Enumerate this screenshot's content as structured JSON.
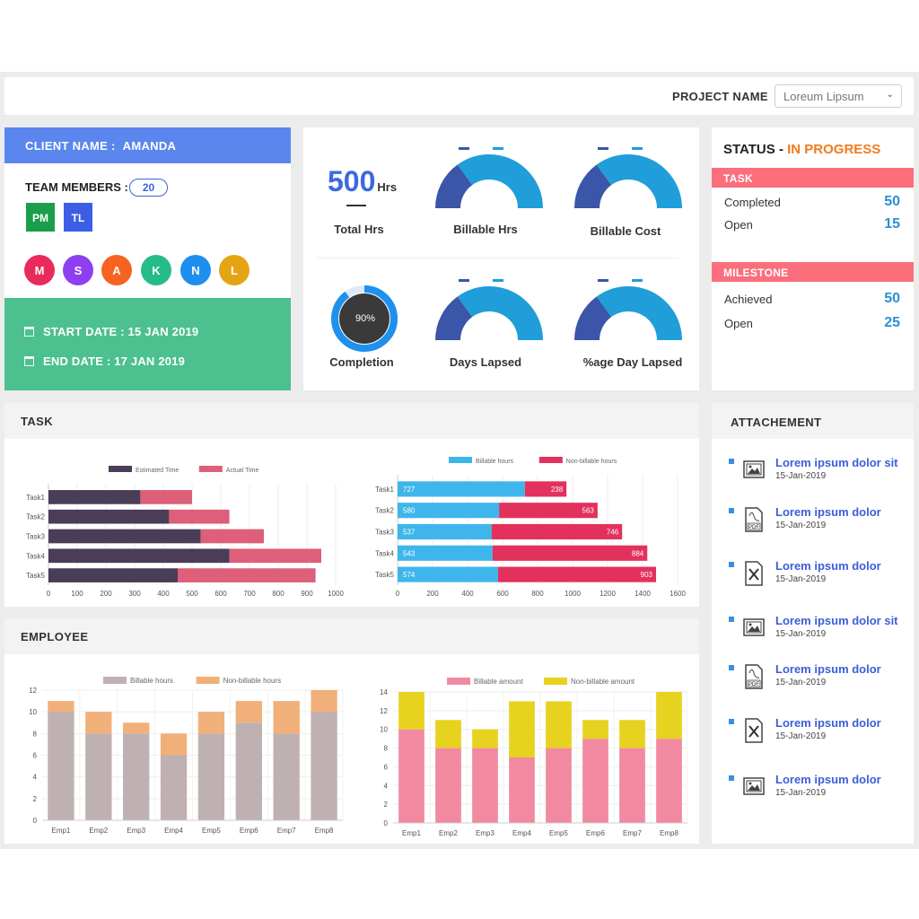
{
  "header": {
    "project_label": "PROJECT NAME",
    "project_value": "Loreum Lipsum"
  },
  "client": {
    "label": "CLIENT NAME :",
    "name": "AMANDA",
    "team_label": "TEAM MEMBERS :",
    "team_count": "20",
    "roles": [
      {
        "label": "PM",
        "color": "#1a9e4b"
      },
      {
        "label": "TL",
        "color": "#3c5ee6"
      }
    ],
    "members": [
      {
        "letter": "M",
        "color": "#ea2a5a"
      },
      {
        "letter": "S",
        "color": "#8e3ff0"
      },
      {
        "letter": "A",
        "color": "#f76320"
      },
      {
        "letter": "K",
        "color": "#26bb8a"
      },
      {
        "letter": "N",
        "color": "#1e8fee"
      },
      {
        "letter": "L",
        "color": "#e5a414"
      }
    ],
    "start_date": "START DATE : 15 JAN 2019",
    "end_date": "END DATE : 17 JAN 2019"
  },
  "stats": {
    "total_value": "500",
    "total_unit": "Hrs",
    "total_label": "Total Hrs",
    "billable_hrs_label": "Billable Hrs",
    "billable_cost_label": "Billable Cost",
    "completion_value": "90%",
    "completion_fraction": 0.9,
    "completion_label": "Completion",
    "days_lapsed_label": "Days Lapsed",
    "pct_day_lapsed_label": "%age Day Lapsed",
    "gauge_colors": [
      "#3b55a8",
      "#1f9ed9"
    ],
    "gauge_fractions": [
      0.3,
      0.3,
      0.3,
      0.3
    ]
  },
  "status": {
    "title": "STATUS -",
    "value": "IN PROGRESS",
    "task_header": "TASK",
    "task_rows": [
      {
        "label": "Completed",
        "value": "50"
      },
      {
        "label": "Open",
        "value": "15"
      }
    ],
    "milestone_header": "MILESTONE",
    "milestone_rows": [
      {
        "label": "Achieved",
        "value": "50"
      },
      {
        "label": "Open",
        "value": "25"
      }
    ]
  },
  "sections": {
    "task": "TASK",
    "employee": "EMPLOYEE",
    "attachment": "ATTACHEMENT"
  },
  "chart_data": [
    {
      "type": "bar",
      "orientation": "horizontal",
      "stacked": true,
      "categories": [
        "Task1",
        "Task2",
        "Task3",
        "Task4",
        "Task5"
      ],
      "series": [
        {
          "name": "Estimated Time",
          "color": "#4a3d57",
          "values": [
            320,
            420,
            530,
            630,
            450
          ]
        },
        {
          "name": "Actual Time",
          "color": "#dd5f79",
          "values": [
            180,
            210,
            220,
            320,
            480
          ]
        }
      ],
      "xlim": [
        0,
        1000
      ],
      "ticks": [
        0,
        100,
        200,
        300,
        400,
        500,
        600,
        700,
        800,
        900,
        1000
      ],
      "legend": "top"
    },
    {
      "type": "bar",
      "orientation": "horizontal",
      "stacked": true,
      "categories": [
        "Task1",
        "Task2",
        "Task3",
        "Task4",
        "Task5"
      ],
      "series": [
        {
          "name": "Billable hours",
          "color": "#3eb6ec",
          "values": [
            727,
            580,
            537,
            543,
            574
          ]
        },
        {
          "name": "Non-billable hours",
          "color": "#e3315e",
          "values": [
            238,
            563,
            746,
            884,
            903
          ]
        }
      ],
      "xlim": [
        0,
        1600
      ],
      "ticks": [
        0,
        200,
        400,
        600,
        800,
        1000,
        1200,
        1400,
        1600
      ],
      "data_labels": true,
      "legend": "top"
    },
    {
      "type": "bar",
      "stacked": true,
      "categories": [
        "Emp1",
        "Emp2",
        "Emp3",
        "Emp4",
        "Emp5",
        "Emp6",
        "Emp7",
        "Emp8"
      ],
      "series": [
        {
          "name": "Billable hours",
          "color": "#bfb0b2",
          "values": [
            10,
            8,
            8,
            6,
            8,
            9,
            8,
            10
          ]
        },
        {
          "name": "Non-billable hours",
          "color": "#f1b07a",
          "values": [
            1,
            2,
            1,
            2,
            2,
            2,
            3,
            2
          ]
        }
      ],
      "ylim": [
        0,
        12
      ],
      "ticks": [
        0,
        2,
        4,
        6,
        8,
        10,
        12
      ],
      "legend": "top"
    },
    {
      "type": "bar",
      "stacked": true,
      "categories": [
        "Emp1",
        "Emp2",
        "Emp3",
        "Emp4",
        "Emp5",
        "Emp6",
        "Emp7",
        "Emp8"
      ],
      "series": [
        {
          "name": "Billable amount",
          "color": "#f18aa1",
          "values": [
            10,
            8,
            8,
            7,
            8,
            9,
            8,
            9
          ]
        },
        {
          "name": "Non-billable amount",
          "color": "#e7d21f",
          "values": [
            4,
            3,
            2,
            6,
            5,
            2,
            3,
            5
          ]
        }
      ],
      "ylim": [
        0,
        14
      ],
      "ticks": [
        0,
        2,
        4,
        6,
        8,
        10,
        12,
        14
      ],
      "legend": "top"
    }
  ],
  "attachments": [
    {
      "title": "Lorem ipsum dolor sit",
      "date": "15-Jan-2019",
      "icon": "image-file-icon"
    },
    {
      "title": "Lorem ipsum dolor",
      "date": "15-Jan-2019",
      "icon": "pdf-file-icon"
    },
    {
      "title": "Lorem ipsum dolor",
      "date": "15-Jan-2019",
      "icon": "excel-file-icon"
    },
    {
      "title": "Lorem ipsum dolor sit",
      "date": "15-Jan-2019",
      "icon": "image-file-icon"
    },
    {
      "title": "Lorem ipsum dolor",
      "date": "15-Jan-2019",
      "icon": "pdf-file-icon"
    },
    {
      "title": "Lorem ipsum dolor",
      "date": "15-Jan-2019",
      "icon": "excel-file-icon"
    },
    {
      "title": "Lorem ipsum dolor",
      "date": "15-Jan-2019",
      "icon": "image-file-icon"
    }
  ]
}
